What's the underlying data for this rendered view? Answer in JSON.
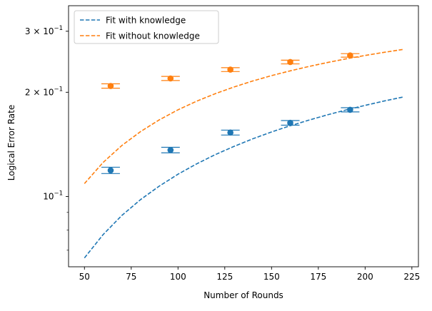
{
  "chart_data": {
    "type": "scatter",
    "title": "",
    "xlabel": "Number of Rounds",
    "ylabel": "Logical Error Rate",
    "xlim": [
      41.5,
      228.5
    ],
    "ylim": [
      0.0627,
      0.3555
    ],
    "yscale": "log",
    "grid": false,
    "legend_position": "top-left",
    "x_ticks": [
      {
        "value": 50,
        "label": "50"
      },
      {
        "value": 75,
        "label": "75"
      },
      {
        "value": 100,
        "label": "100"
      },
      {
        "value": 125,
        "label": "125"
      },
      {
        "value": 150,
        "label": "150"
      },
      {
        "value": 175,
        "label": "175"
      },
      {
        "value": 200,
        "label": "200"
      },
      {
        "value": 225,
        "label": "225"
      }
    ],
    "y_major_ticks": [
      {
        "value": 0.1,
        "base": "10",
        "exp": "−1",
        "mant": ""
      },
      {
        "value": 0.2,
        "base": "10",
        "exp": "−1",
        "mant": "2 × "
      },
      {
        "value": 0.3,
        "base": "10",
        "exp": "−1",
        "mant": "3 × "
      }
    ],
    "y_minor_ticks": [
      0.07,
      0.08,
      0.09
    ],
    "fit_lines": [
      {
        "name": "Fit with knowledge",
        "color": "#1f77b4",
        "x": [
          50,
          60,
          70,
          80,
          90,
          100,
          110,
          120,
          130,
          140,
          150,
          160,
          170,
          180,
          190,
          200,
          210,
          220
        ],
        "y": [
          0.0665,
          0.0777,
          0.0882,
          0.098,
          0.1072,
          0.116,
          0.1243,
          0.1322,
          0.1396,
          0.1468,
          0.1536,
          0.1601,
          0.1662,
          0.1722,
          0.1779,
          0.1833,
          0.1886,
          0.1936
        ]
      },
      {
        "name": "Fit without knowledge",
        "color": "#ff7f0e",
        "x": [
          50,
          60,
          70,
          80,
          90,
          100,
          110,
          120,
          130,
          140,
          150,
          160,
          170,
          180,
          190,
          200,
          210,
          220
        ],
        "y": [
          0.109,
          0.1255,
          0.1404,
          0.154,
          0.1665,
          0.178,
          0.1885,
          0.1982,
          0.2072,
          0.2156,
          0.2234,
          0.2306,
          0.2374,
          0.2438,
          0.2498,
          0.2554,
          0.2607,
          0.2657
        ]
      }
    ],
    "data_series": [
      {
        "color": "#1f77b4",
        "points": [
          {
            "x": 64,
            "y": 0.119,
            "err": 0.0025
          },
          {
            "x": 96,
            "y": 0.1362,
            "err": 0.0025
          },
          {
            "x": 128,
            "y": 0.153,
            "err": 0.0025
          },
          {
            "x": 160,
            "y": 0.1632,
            "err": 0.0025
          },
          {
            "x": 192,
            "y": 0.178,
            "err": 0.0025
          }
        ]
      },
      {
        "color": "#ff7f0e",
        "points": [
          {
            "x": 64,
            "y": 0.2085,
            "err": 0.003
          },
          {
            "x": 96,
            "y": 0.2192,
            "err": 0.003
          },
          {
            "x": 128,
            "y": 0.2325,
            "err": 0.003
          },
          {
            "x": 160,
            "y": 0.2445,
            "err": 0.003
          },
          {
            "x": 192,
            "y": 0.2555,
            "err": 0.003
          }
        ]
      }
    ]
  }
}
